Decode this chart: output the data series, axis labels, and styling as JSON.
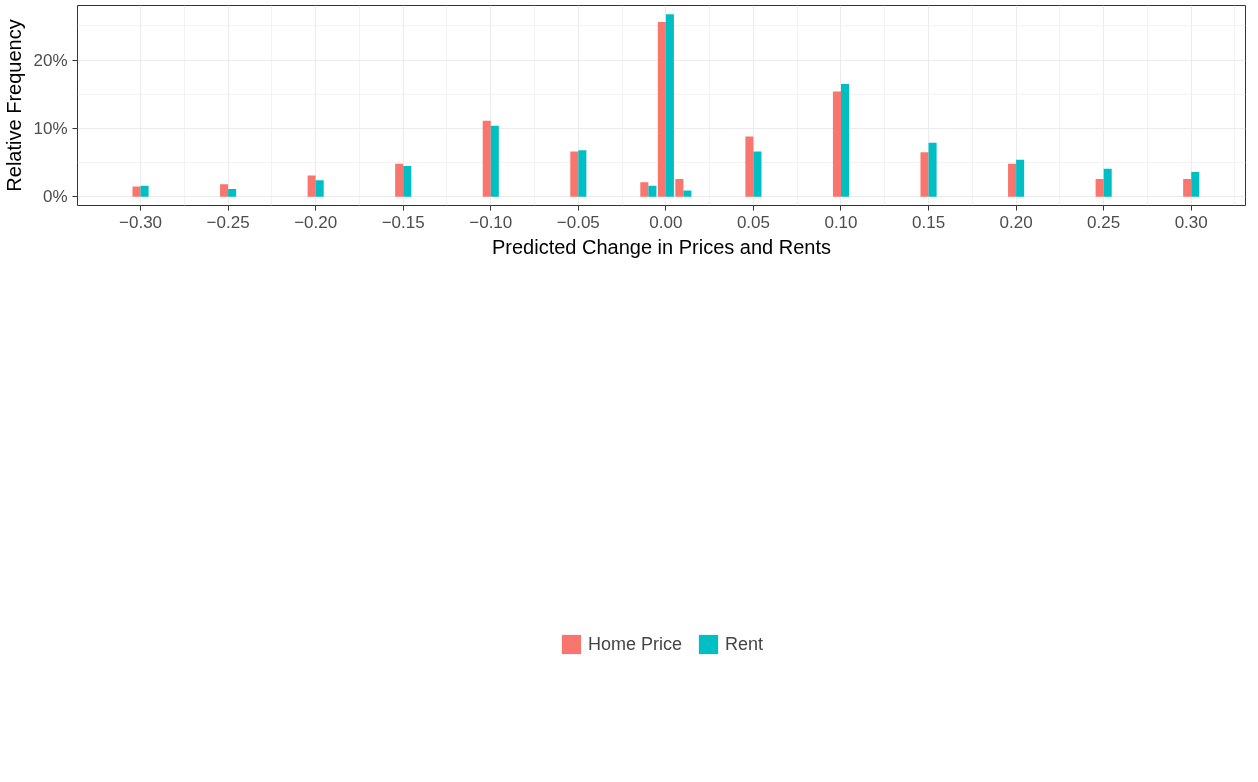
{
  "chart_data": {
    "type": "bar",
    "xlabel": "Predicted Change in Prices and Rents",
    "ylabel": "Relative Frequency",
    "x": [
      -0.3,
      -0.25,
      -0.2,
      -0.15,
      -0.1,
      -0.05,
      -0.01,
      0.0,
      0.01,
      0.05,
      0.1,
      0.15,
      0.2,
      0.25,
      0.3
    ],
    "series": [
      {
        "name": "Home Price",
        "color": "#f8766d",
        "values": [
          1.5,
          1.8,
          3.1,
          4.8,
          11.1,
          6.6,
          2.1,
          25.6,
          2.6,
          8.8,
          15.4,
          6.5,
          4.8,
          2.6,
          2.6
        ]
      },
      {
        "name": "Rent",
        "color": "#00bfc4",
        "values": [
          1.6,
          1.1,
          2.4,
          4.5,
          10.4,
          6.8,
          1.6,
          26.7,
          0.9,
          6.6,
          16.5,
          7.9,
          5.4,
          4.1,
          3.6
        ]
      }
    ],
    "xlim": [
      -0.336,
      0.331
    ],
    "ylim": [
      -1.3,
      28.0
    ],
    "xticks": [
      {
        "value": -0.3,
        "label": "−0.30"
      },
      {
        "value": -0.25,
        "label": "−0.25"
      },
      {
        "value": -0.2,
        "label": "−0.20"
      },
      {
        "value": -0.15,
        "label": "−0.15"
      },
      {
        "value": -0.1,
        "label": "−0.10"
      },
      {
        "value": -0.05,
        "label": "−0.05"
      },
      {
        "value": 0.0,
        "label": "0.00"
      },
      {
        "value": 0.05,
        "label": "0.05"
      },
      {
        "value": 0.1,
        "label": "0.10"
      },
      {
        "value": 0.15,
        "label": "0.15"
      },
      {
        "value": 0.2,
        "label": "0.20"
      },
      {
        "value": 0.25,
        "label": "0.25"
      },
      {
        "value": 0.3,
        "label": "0.30"
      }
    ],
    "yticks": [
      {
        "value": 0,
        "label": "0%"
      },
      {
        "value": 10,
        "label": "10%"
      },
      {
        "value": 20,
        "label": "20%"
      }
    ],
    "grid": true,
    "legend": "bottom"
  }
}
